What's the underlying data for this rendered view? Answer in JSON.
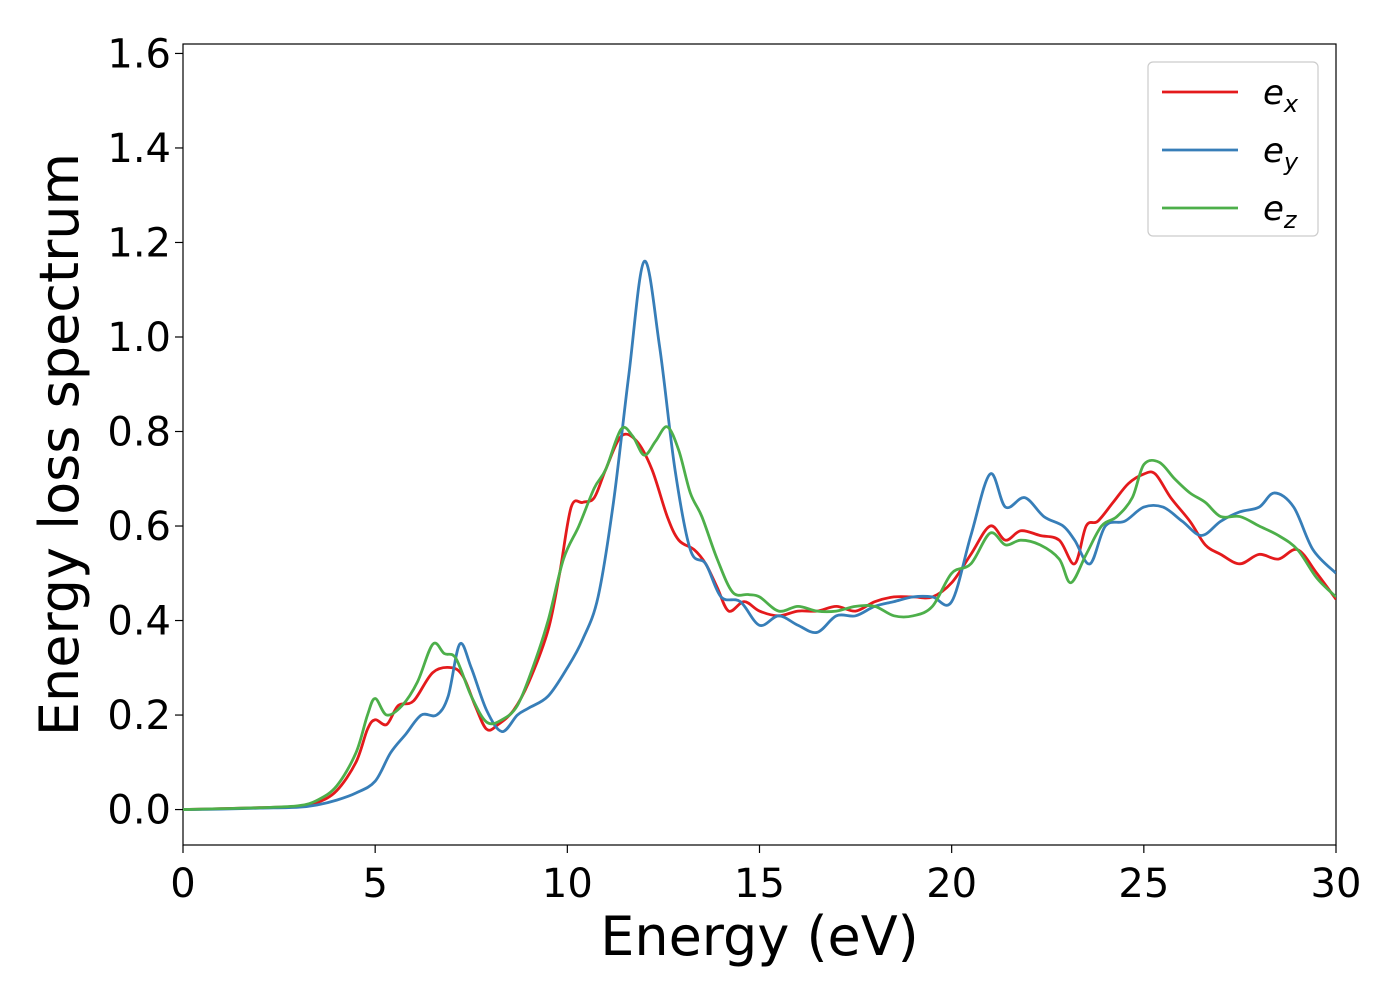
{
  "chart_data": {
    "type": "line",
    "title": "",
    "xlabel": "Energy (eV)",
    "ylabel": "Energy loss spectrum",
    "xlim": [
      0,
      30
    ],
    "ylim": [
      -0.075,
      1.62
    ],
    "xticks": [
      0,
      5,
      10,
      15,
      20,
      25,
      30
    ],
    "yticks": [
      0.0,
      0.2,
      0.4,
      0.6,
      0.8,
      1.0,
      1.2,
      1.4,
      1.6
    ],
    "grid": false,
    "legend_position": "top-right",
    "series": [
      {
        "name": "e_x",
        "base": "e",
        "sub": "x",
        "color": "#e41a1c",
        "points": [
          [
            0,
            0.0
          ],
          [
            1,
            0.002
          ],
          [
            2,
            0.004
          ],
          [
            3,
            0.007
          ],
          [
            3.5,
            0.015
          ],
          [
            4,
            0.04
          ],
          [
            4.5,
            0.1
          ],
          [
            4.8,
            0.17
          ],
          [
            5.0,
            0.19
          ],
          [
            5.3,
            0.18
          ],
          [
            5.6,
            0.22
          ],
          [
            6.0,
            0.23
          ],
          [
            6.5,
            0.29
          ],
          [
            7.0,
            0.3
          ],
          [
            7.3,
            0.28
          ],
          [
            7.6,
            0.22
          ],
          [
            7.9,
            0.17
          ],
          [
            8.2,
            0.18
          ],
          [
            8.6,
            0.21
          ],
          [
            9.0,
            0.27
          ],
          [
            9.5,
            0.38
          ],
          [
            9.8,
            0.5
          ],
          [
            10.1,
            0.64
          ],
          [
            10.4,
            0.65
          ],
          [
            10.7,
            0.66
          ],
          [
            11.0,
            0.72
          ],
          [
            11.4,
            0.79
          ],
          [
            11.8,
            0.78
          ],
          [
            12.2,
            0.72
          ],
          [
            12.6,
            0.62
          ],
          [
            12.9,
            0.57
          ],
          [
            13.3,
            0.55
          ],
          [
            13.6,
            0.52
          ],
          [
            13.9,
            0.47
          ],
          [
            14.2,
            0.42
          ],
          [
            14.6,
            0.44
          ],
          [
            15.0,
            0.42
          ],
          [
            15.5,
            0.41
          ],
          [
            16.0,
            0.42
          ],
          [
            16.5,
            0.42
          ],
          [
            17.0,
            0.43
          ],
          [
            17.5,
            0.42
          ],
          [
            18.0,
            0.44
          ],
          [
            18.5,
            0.45
          ],
          [
            19.0,
            0.45
          ],
          [
            19.5,
            0.45
          ],
          [
            20.0,
            0.48
          ],
          [
            20.5,
            0.54
          ],
          [
            21.0,
            0.6
          ],
          [
            21.4,
            0.57
          ],
          [
            21.8,
            0.59
          ],
          [
            22.3,
            0.58
          ],
          [
            22.8,
            0.57
          ],
          [
            23.2,
            0.52
          ],
          [
            23.5,
            0.6
          ],
          [
            23.8,
            0.61
          ],
          [
            24.2,
            0.65
          ],
          [
            24.6,
            0.69
          ],
          [
            25.0,
            0.71
          ],
          [
            25.3,
            0.71
          ],
          [
            25.7,
            0.66
          ],
          [
            26.2,
            0.61
          ],
          [
            26.6,
            0.56
          ],
          [
            27.0,
            0.54
          ],
          [
            27.5,
            0.52
          ],
          [
            28.0,
            0.54
          ],
          [
            28.5,
            0.53
          ],
          [
            29.0,
            0.55
          ],
          [
            29.5,
            0.5
          ],
          [
            30.0,
            0.445
          ]
        ]
      },
      {
        "name": "e_y",
        "base": "e",
        "sub": "y",
        "color": "#377eb8",
        "points": [
          [
            0,
            0.0
          ],
          [
            1,
            0.001
          ],
          [
            2,
            0.003
          ],
          [
            3,
            0.005
          ],
          [
            3.5,
            0.01
          ],
          [
            4,
            0.02
          ],
          [
            4.5,
            0.035
          ],
          [
            5.0,
            0.06
          ],
          [
            5.4,
            0.12
          ],
          [
            5.8,
            0.16
          ],
          [
            6.2,
            0.2
          ],
          [
            6.6,
            0.2
          ],
          [
            6.9,
            0.24
          ],
          [
            7.2,
            0.35
          ],
          [
            7.5,
            0.3
          ],
          [
            7.9,
            0.21
          ],
          [
            8.3,
            0.165
          ],
          [
            8.7,
            0.2
          ],
          [
            9.0,
            0.215
          ],
          [
            9.5,
            0.24
          ],
          [
            10.0,
            0.3
          ],
          [
            10.4,
            0.36
          ],
          [
            10.8,
            0.45
          ],
          [
            11.2,
            0.65
          ],
          [
            11.6,
            0.92
          ],
          [
            12.0,
            1.16
          ],
          [
            12.4,
            0.98
          ],
          [
            12.8,
            0.72
          ],
          [
            13.2,
            0.55
          ],
          [
            13.6,
            0.52
          ],
          [
            14.0,
            0.45
          ],
          [
            14.5,
            0.44
          ],
          [
            15.0,
            0.39
          ],
          [
            15.5,
            0.41
          ],
          [
            16.0,
            0.39
          ],
          [
            16.5,
            0.375
          ],
          [
            17.0,
            0.41
          ],
          [
            17.5,
            0.41
          ],
          [
            18.0,
            0.43
          ],
          [
            18.5,
            0.44
          ],
          [
            19.0,
            0.45
          ],
          [
            19.5,
            0.45
          ],
          [
            20.0,
            0.44
          ],
          [
            20.5,
            0.58
          ],
          [
            21.0,
            0.71
          ],
          [
            21.4,
            0.64
          ],
          [
            21.9,
            0.66
          ],
          [
            22.4,
            0.62
          ],
          [
            22.9,
            0.6
          ],
          [
            23.2,
            0.57
          ],
          [
            23.6,
            0.52
          ],
          [
            24.0,
            0.6
          ],
          [
            24.5,
            0.61
          ],
          [
            25.0,
            0.64
          ],
          [
            25.5,
            0.64
          ],
          [
            26.0,
            0.61
          ],
          [
            26.5,
            0.58
          ],
          [
            27.0,
            0.61
          ],
          [
            27.5,
            0.63
          ],
          [
            28.0,
            0.64
          ],
          [
            28.4,
            0.67
          ],
          [
            28.9,
            0.64
          ],
          [
            29.4,
            0.55
          ],
          [
            30.0,
            0.5
          ]
        ]
      },
      {
        "name": "e_z",
        "base": "e",
        "sub": "z",
        "color": "#4daf4a",
        "points": [
          [
            0,
            0.0
          ],
          [
            1,
            0.002
          ],
          [
            2,
            0.004
          ],
          [
            3,
            0.008
          ],
          [
            3.5,
            0.02
          ],
          [
            4,
            0.05
          ],
          [
            4.5,
            0.12
          ],
          [
            4.8,
            0.2
          ],
          [
            5.0,
            0.235
          ],
          [
            5.3,
            0.2
          ],
          [
            5.7,
            0.22
          ],
          [
            6.1,
            0.27
          ],
          [
            6.5,
            0.35
          ],
          [
            6.8,
            0.33
          ],
          [
            7.1,
            0.32
          ],
          [
            7.5,
            0.24
          ],
          [
            7.9,
            0.185
          ],
          [
            8.3,
            0.19
          ],
          [
            8.7,
            0.22
          ],
          [
            9.1,
            0.3
          ],
          [
            9.5,
            0.4
          ],
          [
            9.9,
            0.53
          ],
          [
            10.3,
            0.6
          ],
          [
            10.7,
            0.68
          ],
          [
            11.0,
            0.72
          ],
          [
            11.4,
            0.805
          ],
          [
            11.7,
            0.79
          ],
          [
            12.0,
            0.75
          ],
          [
            12.3,
            0.78
          ],
          [
            12.6,
            0.81
          ],
          [
            12.9,
            0.76
          ],
          [
            13.2,
            0.67
          ],
          [
            13.5,
            0.62
          ],
          [
            13.9,
            0.53
          ],
          [
            14.3,
            0.46
          ],
          [
            14.7,
            0.455
          ],
          [
            15.0,
            0.45
          ],
          [
            15.5,
            0.42
          ],
          [
            16.0,
            0.43
          ],
          [
            16.5,
            0.42
          ],
          [
            17.0,
            0.42
          ],
          [
            17.5,
            0.43
          ],
          [
            18.0,
            0.43
          ],
          [
            18.5,
            0.41
          ],
          [
            19.0,
            0.41
          ],
          [
            19.5,
            0.43
          ],
          [
            20.0,
            0.5
          ],
          [
            20.5,
            0.52
          ],
          [
            21.0,
            0.585
          ],
          [
            21.4,
            0.56
          ],
          [
            21.8,
            0.57
          ],
          [
            22.3,
            0.56
          ],
          [
            22.8,
            0.53
          ],
          [
            23.1,
            0.48
          ],
          [
            23.5,
            0.54
          ],
          [
            23.9,
            0.6
          ],
          [
            24.3,
            0.62
          ],
          [
            24.7,
            0.66
          ],
          [
            25.0,
            0.73
          ],
          [
            25.4,
            0.735
          ],
          [
            25.8,
            0.7
          ],
          [
            26.2,
            0.67
          ],
          [
            26.6,
            0.65
          ],
          [
            27.0,
            0.62
          ],
          [
            27.5,
            0.62
          ],
          [
            28.0,
            0.6
          ],
          [
            28.5,
            0.58
          ],
          [
            29.0,
            0.55
          ],
          [
            29.5,
            0.49
          ],
          [
            30.0,
            0.45
          ]
        ]
      }
    ]
  }
}
